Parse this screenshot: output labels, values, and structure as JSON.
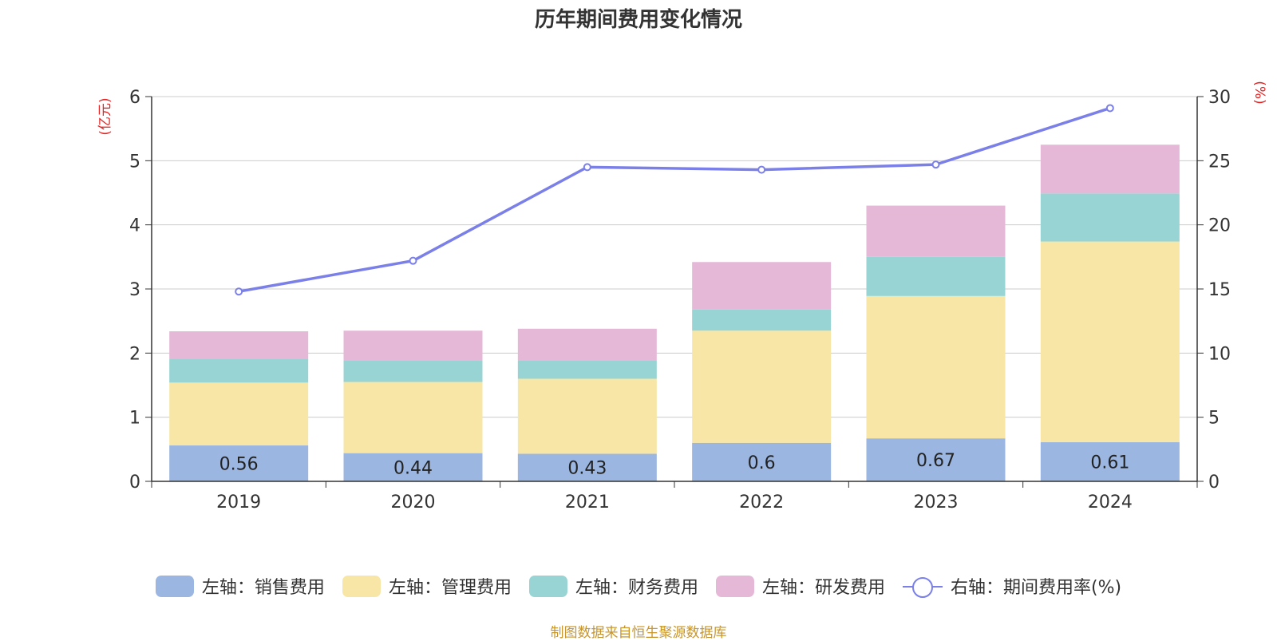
{
  "chart_data": {
    "type": "bar",
    "title": "历年期间费用变化情况",
    "categories": [
      "2019",
      "2020",
      "2021",
      "2022",
      "2023",
      "2024"
    ],
    "ylabel_left": "(亿元)",
    "ylabel_right": "(%)",
    "ylim_left": [
      0,
      6
    ],
    "ylim_right": [
      0,
      30
    ],
    "yticks_left": [
      0,
      1,
      2,
      3,
      4,
      5,
      6
    ],
    "yticks_right": [
      0,
      5,
      10,
      15,
      20,
      25,
      30
    ],
    "grid": true,
    "legend_position": "bottom",
    "series": [
      {
        "name": "左轴：销售费用",
        "type": "bar",
        "axis": "left",
        "color": "#9bb6e0",
        "values": [
          0.56,
          0.44,
          0.43,
          0.6,
          0.67,
          0.61
        ],
        "show_labels": true
      },
      {
        "name": "左轴：管理费用",
        "type": "bar",
        "axis": "left",
        "color": "#f7e6a6",
        "values": [
          0.98,
          1.11,
          1.17,
          1.75,
          2.22,
          3.13
        ],
        "show_labels": false
      },
      {
        "name": "左轴：财务费用",
        "type": "bar",
        "axis": "left",
        "color": "#98d4d4",
        "values": [
          0.37,
          0.34,
          0.29,
          0.33,
          0.61,
          0.75
        ],
        "show_labels": false
      },
      {
        "name": "左轴：研发费用",
        "type": "bar",
        "axis": "left",
        "color": "#e6b8d8",
        "values": [
          0.43,
          0.46,
          0.49,
          0.74,
          0.8,
          0.76
        ],
        "show_labels": false
      },
      {
        "name": "右轴：期间费用率(%)",
        "type": "line",
        "axis": "right",
        "color": "#7b80e8",
        "values": [
          14.8,
          17.2,
          24.5,
          24.3,
          24.7,
          29.1
        ]
      }
    ]
  },
  "footer": {
    "source": "制图数据来自恒生聚源数据库"
  }
}
